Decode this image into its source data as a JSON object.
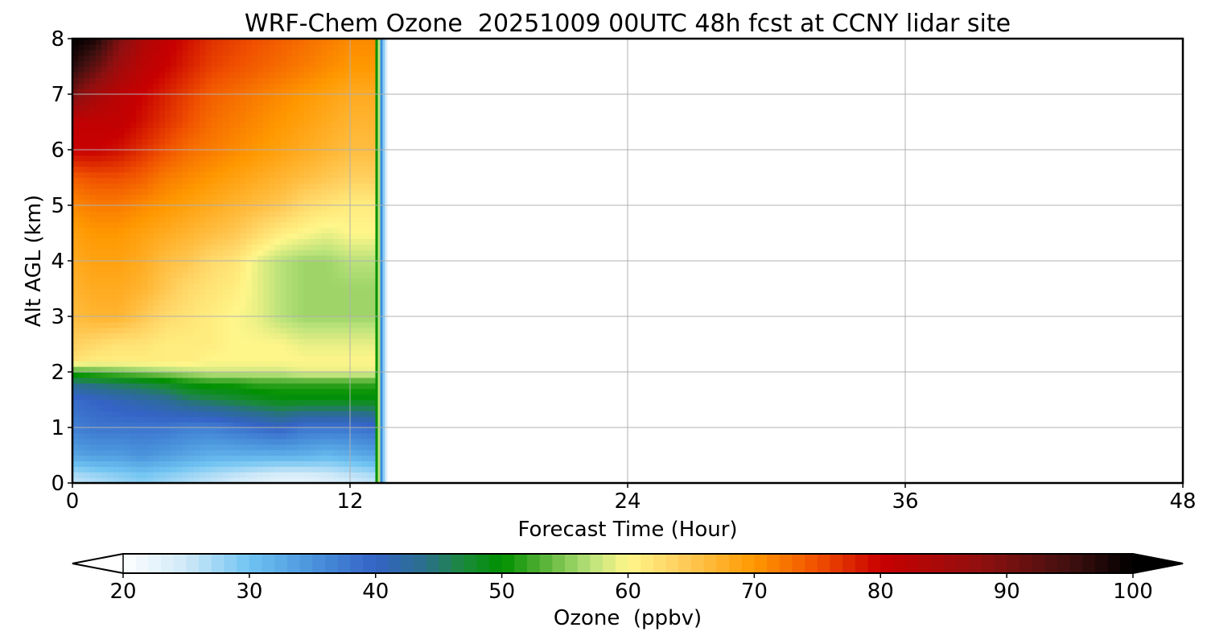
{
  "chart_data": {
    "type": "heatmap",
    "title": "WRF-Chem Ozone  20251009 00UTC 48h fcst at CCNY lidar site",
    "xlabel": "Forecast Time (Hour)",
    "ylabel": "Alt AGL (km)",
    "xlim": [
      0,
      48
    ],
    "ylim": [
      0,
      8
    ],
    "xticks": [
      0,
      12,
      24,
      36,
      48
    ],
    "yticks": [
      0,
      1,
      2,
      3,
      4,
      5,
      6,
      7,
      8
    ],
    "grid": true,
    "data_extent_hours": [
      0,
      13.2
    ],
    "x": [
      0,
      1,
      2,
      3,
      4,
      5,
      6,
      7,
      8,
      9,
      10,
      11,
      12,
      13
    ],
    "y": [
      0.1,
      0.5,
      1.0,
      1.5,
      1.8,
      2.0,
      2.2,
      2.5,
      3.0,
      3.5,
      4.0,
      4.5,
      5.0,
      5.5,
      6.0,
      6.5,
      7.0,
      7.5,
      8.0
    ],
    "z": [
      [
        26,
        27,
        28,
        29,
        28,
        27,
        26,
        25,
        24,
        23,
        23,
        24,
        25,
        26
      ],
      [
        33,
        34,
        34,
        35,
        34,
        33,
        32,
        32,
        32,
        32,
        32,
        31,
        32,
        33
      ],
      [
        37,
        38,
        38,
        38,
        38,
        37,
        37,
        38,
        39,
        40,
        38,
        38,
        38,
        39
      ],
      [
        39,
        40,
        41,
        42,
        43,
        45,
        46,
        47,
        48,
        49,
        49,
        49,
        49,
        49
      ],
      [
        44,
        45,
        46,
        47,
        48,
        50,
        51,
        51,
        52,
        52,
        52,
        52,
        52,
        52
      ],
      [
        52,
        53,
        54,
        55,
        56,
        57,
        58,
        58,
        58,
        58,
        59,
        59,
        59,
        59
      ],
      [
        62,
        61,
        61,
        61,
        61,
        61,
        60,
        60,
        60,
        60,
        60,
        60,
        60,
        60
      ],
      [
        64,
        63,
        62,
        62,
        61,
        61,
        61,
        60,
        60,
        60,
        59,
        59,
        59,
        59
      ],
      [
        66,
        67,
        67,
        65,
        63,
        62,
        61,
        60,
        59,
        57,
        56,
        56,
        56,
        56
      ],
      [
        67,
        68,
        68,
        67,
        65,
        63,
        62,
        61,
        59,
        57,
        56,
        56,
        56,
        56
      ],
      [
        68,
        69,
        69,
        68,
        66,
        65,
        63,
        62,
        59,
        57,
        56,
        56,
        57,
        57
      ],
      [
        69,
        70,
        70,
        69,
        68,
        67,
        66,
        65,
        63,
        61,
        60,
        59,
        60,
        60
      ],
      [
        71,
        72,
        72,
        71,
        70,
        69,
        68,
        67,
        66,
        65,
        63,
        62,
        61,
        61
      ],
      [
        74,
        75,
        75,
        74,
        72,
        71,
        70,
        69,
        68,
        67,
        66,
        65,
        64,
        64
      ],
      [
        80,
        80,
        79,
        77,
        75,
        73,
        72,
        71,
        70,
        69,
        68,
        67,
        66,
        66
      ],
      [
        81,
        81,
        81,
        79,
        77,
        75,
        73,
        72,
        71,
        70,
        69,
        68,
        67,
        67
      ],
      [
        90,
        85,
        82,
        80,
        78,
        76,
        74,
        73,
        72,
        71,
        70,
        69,
        68,
        68
      ],
      [
        97,
        92,
        86,
        82,
        80,
        78,
        76,
        75,
        74,
        73,
        72,
        71,
        70,
        70
      ],
      [
        100,
        98,
        90,
        84,
        81,
        79,
        77,
        76,
        75,
        74,
        73,
        72,
        71,
        71
      ]
    ],
    "colorbar": {
      "label": "Ozone  (ppbv)",
      "min": 20,
      "max": 100,
      "ticks": [
        20,
        30,
        40,
        50,
        60,
        70,
        80,
        90,
        100
      ],
      "extend": "both",
      "colors": [
        {
          "value": 20,
          "color": "#ffffff"
        },
        {
          "value": 25,
          "color": "#cfe9f8"
        },
        {
          "value": 30,
          "color": "#6fc3f2"
        },
        {
          "value": 35,
          "color": "#4a93dc"
        },
        {
          "value": 40,
          "color": "#3463c6"
        },
        {
          "value": 44,
          "color": "#2a6f8a"
        },
        {
          "value": 47,
          "color": "#1a8a3a"
        },
        {
          "value": 50,
          "color": "#009000"
        },
        {
          "value": 53,
          "color": "#4fae32"
        },
        {
          "value": 57,
          "color": "#b9e27a"
        },
        {
          "value": 60,
          "color": "#fff68a"
        },
        {
          "value": 64,
          "color": "#ffd060"
        },
        {
          "value": 70,
          "color": "#ff9800"
        },
        {
          "value": 75,
          "color": "#f05000"
        },
        {
          "value": 80,
          "color": "#c80000"
        },
        {
          "value": 88,
          "color": "#901010"
        },
        {
          "value": 95,
          "color": "#401010"
        },
        {
          "value": 100,
          "color": "#000000"
        }
      ]
    }
  }
}
